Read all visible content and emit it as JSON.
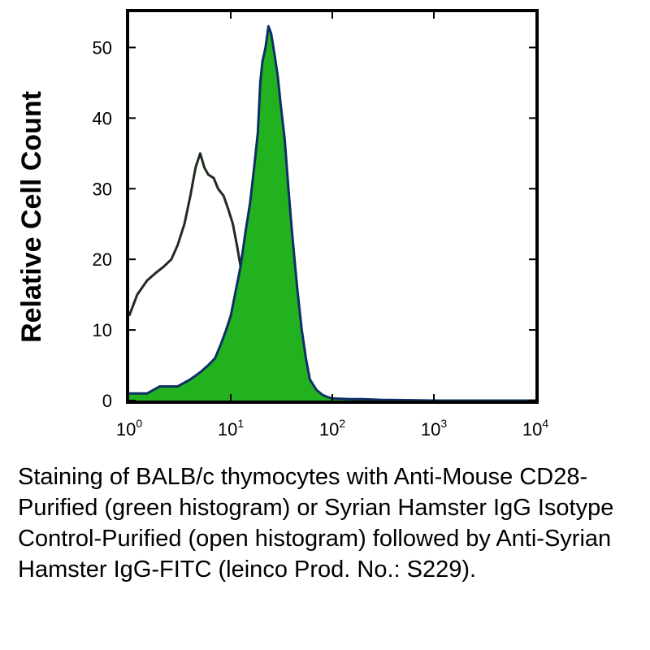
{
  "chart_data": {
    "type": "area",
    "title": "",
    "xlabel": "",
    "ylabel": "Relative Cell Count",
    "xscale": "log",
    "xlim": [
      1,
      10000
    ],
    "ylim": [
      0,
      55
    ],
    "grid": false,
    "x_ticks": [
      {
        "base": "10",
        "exp": "0",
        "value": 1
      },
      {
        "base": "10",
        "exp": "1",
        "value": 10
      },
      {
        "base": "10",
        "exp": "2",
        "value": 100
      },
      {
        "base": "10",
        "exp": "3",
        "value": 1000
      },
      {
        "base": "10",
        "exp": "4",
        "value": 10000
      }
    ],
    "y_ticks": [
      0,
      10,
      20,
      30,
      40,
      50
    ],
    "series": [
      {
        "style": "open",
        "color": "#1f2b1f",
        "x": [
          1,
          1.2,
          1.5,
          1.8,
          2.2,
          2.6,
          3.0,
          3.5,
          4.0,
          4.5,
          5.0,
          5.5,
          6.0,
          6.8,
          7.5,
          8.5,
          9.5,
          10.5,
          11.5,
          12.5,
          14
        ],
        "y": [
          12,
          15,
          17,
          18,
          19,
          20,
          22,
          25,
          29,
          33,
          35,
          33,
          32,
          31.5,
          30,
          29,
          27,
          25,
          22,
          19,
          15
        ]
      },
      {
        "style": "filled",
        "color": "#23b21f",
        "outline": "#0d2f66",
        "x": [
          1,
          1.5,
          2.0,
          3.0,
          4.0,
          5.0,
          6.0,
          7.0,
          8.0,
          9.0,
          10,
          11,
          12.5,
          14,
          15.5,
          17,
          18.5,
          19.5,
          20.5,
          22,
          23.5,
          25,
          27,
          29,
          31,
          34,
          37,
          40,
          45,
          50,
          55,
          60,
          70,
          80,
          90,
          100,
          150,
          200,
          300,
          1000,
          10000
        ],
        "y": [
          1,
          1,
          2,
          2,
          3,
          4,
          5,
          6,
          8,
          10,
          12,
          15,
          19,
          24,
          28,
          33,
          38,
          45,
          48,
          50,
          53,
          52,
          49,
          46,
          42,
          37,
          30,
          24,
          16,
          10,
          6,
          3,
          1.5,
          0.8,
          0.5,
          0.3,
          0.2,
          0.2,
          0.1,
          0,
          0
        ]
      }
    ]
  },
  "caption": "Staining of BALB/c thymocytes with Anti-Mouse CD28-Purified (green histogram) or Syrian Hamster IgG Isotype Control-Purified (open histogram) followed by Anti-Syrian Hamster IgG-FITC (leinco Prod. No.: S229)."
}
